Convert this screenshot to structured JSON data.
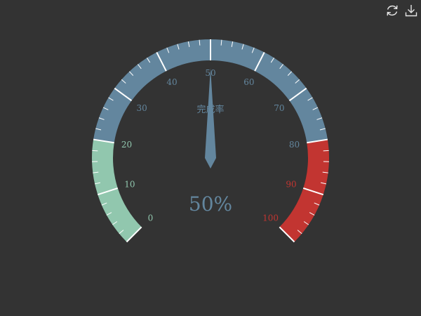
{
  "toolbar": {
    "restore_icon": "refresh-icon",
    "save_icon": "download-icon",
    "icon_color": "#e6e6e6"
  },
  "chart_data": {
    "type": "gauge",
    "min": 0,
    "max": 100,
    "split_number": 10,
    "ticks": [
      "0",
      "10",
      "20",
      "30",
      "40",
      "50",
      "60",
      "70",
      "80",
      "90",
      "100"
    ],
    "bands": [
      {
        "to": 0.2,
        "color": "#91c7ae"
      },
      {
        "to": 0.8,
        "color": "#63869e"
      },
      {
        "to": 1.0,
        "color": "#c23531"
      }
    ],
    "value": 50,
    "detail": "50%",
    "title": "完成率",
    "pointer_color": "#63869e",
    "background": "#333333"
  }
}
